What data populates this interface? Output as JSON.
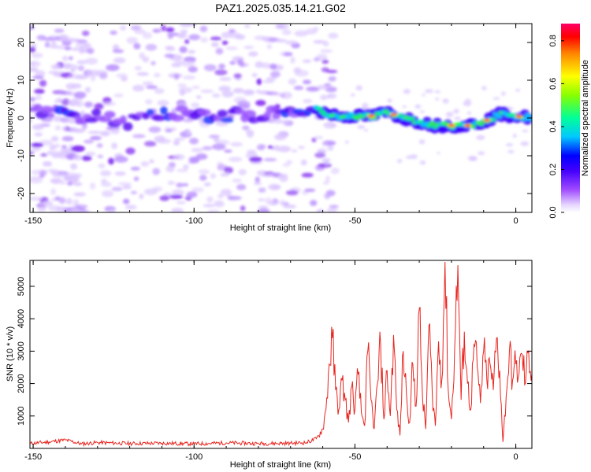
{
  "title": "PAZ1.2025.035.14.21.G02",
  "chart_data": [
    {
      "type": "heatmap",
      "xlabel": "Height of straight line (km)",
      "ylabel": "Frequency (Hz)",
      "xlim": [
        -151,
        5
      ],
      "ylim": [
        -25,
        25
      ],
      "x_ticks": [
        -150,
        -100,
        -50,
        0
      ],
      "y_ticks": [
        -20,
        -10,
        0,
        10,
        20
      ],
      "colorbar": {
        "label": "Normalized spectral amplitude",
        "range": [
          0,
          0.88
        ],
        "ticks": [
          0.0,
          0.2,
          0.4,
          0.6,
          0.8
        ],
        "colors": [
          "#ffffff",
          "#c8a8ff",
          "#8a2be2",
          "#0000ff",
          "#00bfff",
          "#00ff99",
          "#aaff00",
          "#ffff00",
          "#ff9900",
          "#ff0000",
          "#ff0066"
        ]
      },
      "ridge": {
        "x": [
          -150,
          -140,
          -130,
          -120,
          -110,
          -100,
          -90,
          -80,
          -70,
          -62,
          -58,
          -55,
          -50,
          -45,
          -40,
          -35,
          -30,
          -25,
          -20,
          -15,
          -10,
          -5,
          0,
          5
        ],
        "frequency": [
          2,
          1,
          0,
          -1,
          1,
          1,
          0.5,
          1,
          1.5,
          2.5,
          1,
          0.5,
          0.5,
          0.5,
          1.5,
          0,
          -1,
          -2,
          -2,
          -2,
          -1,
          1,
          0.5,
          0
        ]
      },
      "grid": false
    },
    {
      "type": "line",
      "xlabel": "Height of straight line (km)",
      "ylabel": "SNR (10 * v/v)",
      "xlim": [
        -151,
        5
      ],
      "ylim": [
        0,
        5800
      ],
      "x_ticks": [
        -150,
        -100,
        -50,
        0
      ],
      "y_ticks": [
        1000,
        2000,
        3000,
        4000,
        5000
      ],
      "series": [
        {
          "color": "#e8251f",
          "x": [
            -151,
            -145,
            -140,
            -135,
            -130,
            -120,
            -110,
            -100,
            -90,
            -80,
            -70,
            -65,
            -62,
            -60,
            -59,
            -58,
            -57,
            -56,
            -55,
            -54,
            -53,
            -52,
            -51,
            -50,
            -49,
            -48,
            -47,
            -46,
            -45,
            -44,
            -43,
            -42,
            -41,
            -40,
            -39,
            -38,
            -37,
            -36,
            -35,
            -34,
            -33,
            -32,
            -31,
            -30,
            -29,
            -28,
            -27,
            -26,
            -25,
            -24,
            -23,
            -22,
            -21,
            -20,
            -19,
            -18,
            -17,
            -16,
            -15,
            -14,
            -13,
            -12,
            -11,
            -10,
            -9,
            -8,
            -7,
            -6,
            -5,
            -4,
            -3,
            -2,
            -1,
            0,
            1,
            2,
            3,
            4,
            5
          ],
          "values": [
            150,
            200,
            260,
            140,
            180,
            150,
            160,
            140,
            170,
            150,
            160,
            180,
            300,
            600,
            1200,
            2600,
            3400,
            1800,
            1200,
            2100,
            1500,
            800,
            1900,
            1200,
            2300,
            1100,
            700,
            3000,
            1500,
            600,
            2000,
            3200,
            900,
            2400,
            1000,
            3500,
            1200,
            400,
            3000,
            1700,
            800,
            2600,
            1300,
            4300,
            1600,
            600,
            3800,
            1800,
            700,
            3300,
            2100,
            5750,
            1800,
            900,
            3100,
            5650,
            1500,
            3600,
            2000,
            1200,
            3200,
            2500,
            1400,
            3000,
            2100,
            2600,
            1800,
            3400,
            2400,
            200,
            1600,
            3000,
            2100,
            2600,
            2300,
            2900,
            2000,
            3000,
            2300
          ]
        }
      ],
      "grid": false
    }
  ]
}
